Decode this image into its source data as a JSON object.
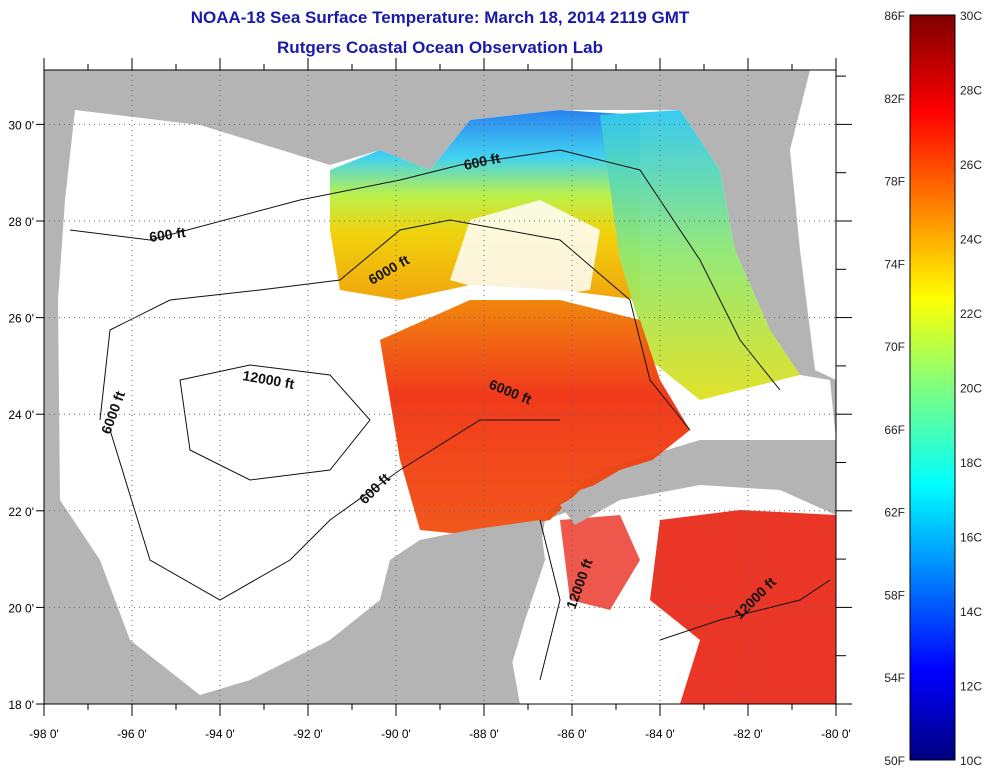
{
  "header": {
    "title": "NOAA-18 Sea Surface Temperature:  March 18, 2014 2119 GMT",
    "subtitle": "Rutgers Coastal Ocean Observation Lab"
  },
  "map": {
    "lon_ticks": [
      {
        "lon": -98,
        "label": "-98 0'"
      },
      {
        "lon": -96,
        "label": "-96 0'"
      },
      {
        "lon": -94,
        "label": "-94 0'"
      },
      {
        "lon": -92,
        "label": "-92 0'"
      },
      {
        "lon": -90,
        "label": "-90 0'"
      },
      {
        "lon": -88,
        "label": "-88 0'"
      },
      {
        "lon": -86,
        "label": "-86 0'"
      },
      {
        "lon": -84,
        "label": "-84 0'"
      },
      {
        "lon": -82,
        "label": "-82 0'"
      },
      {
        "lon": -80,
        "label": "-80 0'"
      }
    ],
    "lat_ticks": [
      {
        "lat": 18,
        "label": "18 0'"
      },
      {
        "lat": 20,
        "label": "20 0'"
      },
      {
        "lat": 22,
        "label": "22 0'"
      },
      {
        "lat": 24,
        "label": "24 0'"
      },
      {
        "lat": 26,
        "label": "26 0'"
      },
      {
        "lat": 28,
        "label": "28 0'"
      },
      {
        "lat": 30,
        "label": "30 0'"
      }
    ],
    "contour_labels": [
      "600 ft",
      "600 ft",
      "600 ft",
      "6000 ft",
      "6000 ft",
      "6000 ft",
      "12000 ft",
      "12000 ft",
      "12000 ft"
    ],
    "colors": {
      "land": "#b4b4b4",
      "ocean_no_data": "#ffffff"
    }
  },
  "colorbar": {
    "fahrenheit": [
      "86F",
      "82F",
      "78F",
      "74F",
      "70F",
      "66F",
      "62F",
      "58F",
      "54F",
      "50F"
    ],
    "celsius": [
      "30C",
      "28C",
      "26C",
      "24C",
      "22C",
      "20C",
      "18C",
      "16C",
      "14C",
      "12C",
      "10C"
    ],
    "range_c": [
      10,
      30
    ]
  }
}
